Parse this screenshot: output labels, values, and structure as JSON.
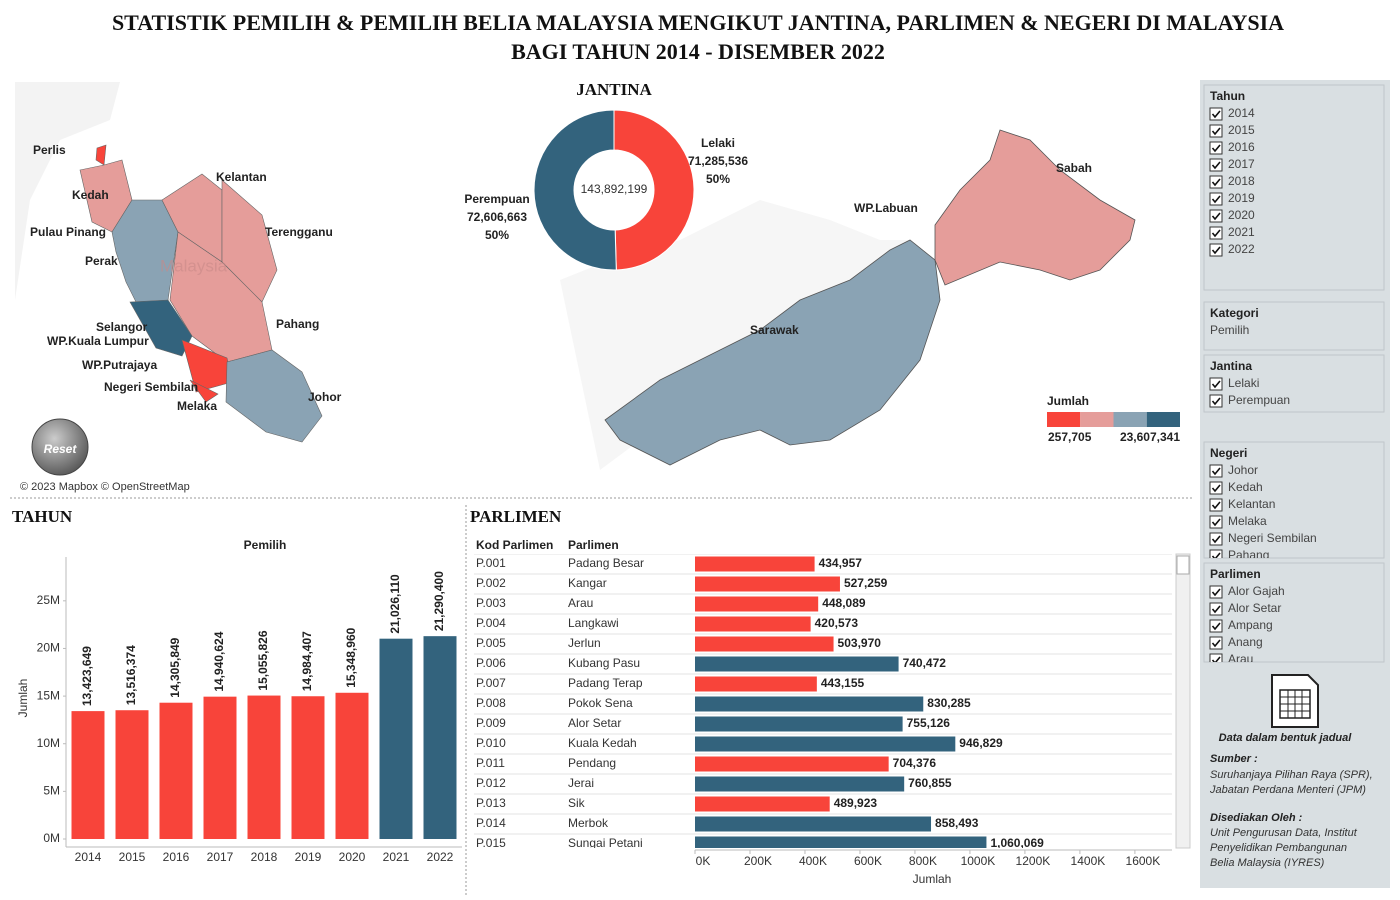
{
  "header": {
    "title_lines": [
      "STATISTIK PEMILIH & PEMILIH BELIA MALAYSIA MENGIKUT JANTINA, PARLIMEN & NEGERI DI MALAYSIA",
      "BAGI TAHUN 2014 - DISEMBER 2022"
    ]
  },
  "map": {
    "state_labels": [
      "Perlis",
      "Kedah",
      "Kelantan",
      "Pulau Pinang",
      "Terengganu",
      "Perak",
      "Selangor",
      "WP.Kuala Lumpur",
      "Pahang",
      "WP.Putrajaya",
      "Negeri Sembilan",
      "Melaka",
      "Johor",
      "Sabah",
      "WP.Labuan",
      "Sarawak"
    ],
    "basemap_label": "Malaysia",
    "legend": {
      "title": "Jumlah",
      "range_labels": [
        "257,705",
        "23,607,341"
      ],
      "colors": [
        "#f8443a",
        "#e59d9a",
        "#8aa3b4",
        "#33637d"
      ]
    },
    "attribution": "© 2023 Mapbox © OpenStreetMap",
    "reset": "Reset"
  },
  "chart_data": [
    {
      "type": "donut",
      "title": "JANTINA",
      "categories": [
        "Lelaki",
        "Perempuan"
      ],
      "values": [
        71285536,
        72606663
      ],
      "value_labels": [
        "71,285,536",
        "72,606,663"
      ],
      "percents": [
        50,
        50
      ],
      "percent_labels": [
        "50%",
        "50%"
      ],
      "colors": [
        "#f8443a",
        "#33637d"
      ],
      "total": 143892199,
      "total_label": "143,892,199"
    },
    {
      "type": "bar",
      "title": "TAHUN",
      "subtitle": "Pemilih",
      "ylabel": "Jumlah",
      "categories": [
        "2014",
        "2015",
        "2016",
        "2017",
        "2018",
        "2019",
        "2020",
        "2021",
        "2022"
      ],
      "values": [
        13423649,
        13516374,
        14305849,
        14940624,
        15055826,
        14984407,
        15348960,
        21026110,
        21290400
      ],
      "value_labels": [
        "13,423,649",
        "13,516,374",
        "14,305,849",
        "14,940,624",
        "15,055,826",
        "14,984,407",
        "15,348,960",
        "21,026,110",
        "21,290,400"
      ],
      "colors": [
        "#f8443a",
        "#f8443a",
        "#f8443a",
        "#f8443a",
        "#f8443a",
        "#f8443a",
        "#f8443a",
        "#33637d",
        "#33637d"
      ],
      "ylim": [
        0,
        29600000
      ],
      "yticks": [
        {
          "value": 0,
          "label": "0M"
        },
        {
          "value": 5000000,
          "label": "5M"
        },
        {
          "value": 10000000,
          "label": "10M"
        },
        {
          "value": 15000000,
          "label": "15M"
        },
        {
          "value": 20000000,
          "label": "20M"
        },
        {
          "value": 25000000,
          "label": "25M"
        }
      ]
    },
    {
      "type": "hbar",
      "title": "PARLIMEN",
      "columns": [
        "Kod Parlimen",
        "Parlimen"
      ],
      "codes": [
        "P.001",
        "P.002",
        "P.003",
        "P.004",
        "P.005",
        "P.006",
        "P.007",
        "P.008",
        "P.009",
        "P.010",
        "P.011",
        "P.012",
        "P.013",
        "P.014",
        "P.015"
      ],
      "categories": [
        "Padang Besar",
        "Kangar",
        "Arau",
        "Langkawi",
        "Jerlun",
        "Kubang Pasu",
        "Padang Terap",
        "Pokok Sena",
        "Alor Setar",
        "Kuala Kedah",
        "Pendang",
        "Jerai",
        "Sik",
        "Merbok",
        "Sungai Petani"
      ],
      "values": [
        434957,
        527259,
        448089,
        420573,
        503970,
        740472,
        443155,
        830285,
        755126,
        946829,
        704376,
        760855,
        489923,
        858493,
        1060069
      ],
      "value_labels": [
        "434,957",
        "527,259",
        "448,089",
        "420,573",
        "503,970",
        "740,472",
        "443,155",
        "830,285",
        "755,126",
        "946,829",
        "704,376",
        "760,855",
        "489,923",
        "858,493",
        "1,060,069"
      ],
      "colors": [
        "#f8443a",
        "#f8443a",
        "#f8443a",
        "#f8443a",
        "#f8443a",
        "#33637d",
        "#f8443a",
        "#33637d",
        "#33637d",
        "#33637d",
        "#f8443a",
        "#33637d",
        "#f8443a",
        "#33637d",
        "#33637d"
      ],
      "xlabel": "Jumlah",
      "xlim": [
        0,
        1735000
      ],
      "xticks": [
        {
          "value": 0,
          "label": "0K"
        },
        {
          "value": 200000,
          "label": "200K"
        },
        {
          "value": 400000,
          "label": "400K"
        },
        {
          "value": 600000,
          "label": "600K"
        },
        {
          "value": 800000,
          "label": "800K"
        },
        {
          "value": 1000000,
          "label": "1000K"
        },
        {
          "value": 1200000,
          "label": "1200K"
        },
        {
          "value": 1400000,
          "label": "1400K"
        },
        {
          "value": 1600000,
          "label": "1600K"
        }
      ]
    }
  ],
  "filters": [
    {
      "title": "Tahun",
      "checkbox": true,
      "items": [
        "2014",
        "2015",
        "2016",
        "2017",
        "2018",
        "2019",
        "2020",
        "2021",
        "2022"
      ]
    },
    {
      "title": "Kategori",
      "checkbox": false,
      "items": [
        "Pemilih"
      ]
    },
    {
      "title": "Jantina",
      "checkbox": true,
      "items": [
        "Lelaki",
        "Perempuan"
      ]
    },
    {
      "title": "Negeri",
      "checkbox": true,
      "items": [
        "Johor",
        "Kedah",
        "Kelantan",
        "Melaka",
        "Negeri Sembilan",
        "Pahang"
      ]
    },
    {
      "title": "Parlimen",
      "checkbox": true,
      "items": [
        "Alor Gajah",
        "Alor Setar",
        "Ampang",
        "Anang",
        "Arau"
      ]
    }
  ],
  "notes": {
    "table_link": "Data dalam bentuk jadual",
    "source": {
      "title": "Sumber :",
      "lines": [
        "Suruhanjaya Pilihan Raya (SPR),",
        "Jabatan Perdana Menteri (JPM)"
      ]
    },
    "prepared_by": {
      "title": "Disediakan Oleh :",
      "lines": [
        "Unit Pengurusan Data, Institut",
        "Penyelidikan Pembangunan",
        "Belia Malaysia (IYRES)"
      ]
    }
  }
}
